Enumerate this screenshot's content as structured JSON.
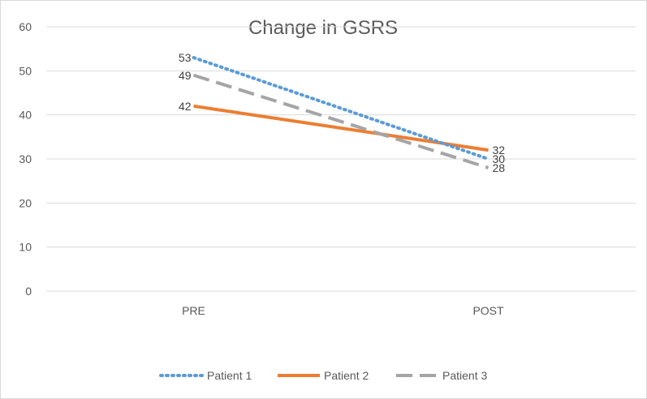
{
  "chart_data": {
    "type": "line",
    "title": "Change in GSRS",
    "categories": [
      "PRE",
      "POST"
    ],
    "ylim": [
      0,
      60
    ],
    "yticks": [
      0,
      10,
      20,
      30,
      40,
      50,
      60
    ],
    "ytick_labels": [
      "0",
      "10",
      "20",
      "30",
      "40",
      "50",
      "60"
    ],
    "grid": true,
    "legend_position": "bottom",
    "series": [
      {
        "name": "Patient 1",
        "values": [
          53,
          30
        ],
        "color": "#5b9bd5",
        "style": "dotted"
      },
      {
        "name": "Patient 2",
        "values": [
          42,
          32
        ],
        "color": "#ed7d31",
        "style": "solid"
      },
      {
        "name": "Patient 3",
        "values": [
          49,
          28
        ],
        "color": "#a5a5a5",
        "style": "dashed"
      }
    ]
  }
}
